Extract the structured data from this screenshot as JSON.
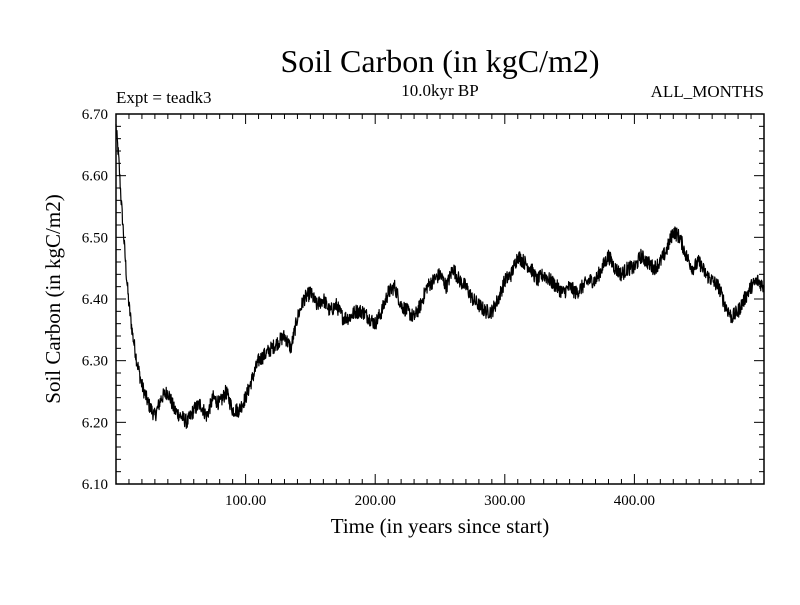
{
  "chart_data": {
    "type": "line",
    "title": "Soil Carbon (in kgC/m2)",
    "subtitle": "10.0kyr BP",
    "expt_label": "Expt = teadk3",
    "season_label": "ALL_MONTHS",
    "xlabel": "Time (in years since start)",
    "ylabel": "Soil Carbon (in kgC/m2)",
    "xlim": [
      0,
      500
    ],
    "ylim": [
      6.1,
      6.7
    ],
    "xticks": [
      100,
      200,
      300,
      400
    ],
    "xtick_labels": [
      "100.00",
      "200.00",
      "300.00",
      "400.00"
    ],
    "yticks": [
      6.1,
      6.2,
      6.3,
      6.4,
      6.5,
      6.6,
      6.7
    ],
    "ytick_labels": [
      "6.10",
      "6.20",
      "6.30",
      "6.40",
      "6.50",
      "6.60",
      "6.70"
    ],
    "grid": false,
    "line_color": "#000000",
    "noise_amplitude": 0.012,
    "series": [
      {
        "name": "Soil Carbon",
        "x": [
          0,
          2,
          4,
          6,
          8,
          10,
          13,
          16,
          20,
          25,
          30,
          35,
          40,
          45,
          50,
          55,
          60,
          65,
          70,
          75,
          80,
          85,
          90,
          95,
          100,
          105,
          110,
          115,
          120,
          125,
          130,
          135,
          140,
          145,
          150,
          155,
          160,
          165,
          170,
          175,
          180,
          185,
          190,
          195,
          200,
          205,
          210,
          215,
          220,
          225,
          230,
          235,
          240,
          245,
          250,
          255,
          260,
          265,
          270,
          275,
          280,
          285,
          290,
          295,
          300,
          305,
          310,
          315,
          320,
          325,
          330,
          335,
          340,
          345,
          350,
          355,
          360,
          365,
          370,
          375,
          380,
          385,
          390,
          395,
          400,
          405,
          410,
          415,
          420,
          425,
          430,
          435,
          440,
          445,
          450,
          455,
          460,
          465,
          470,
          475,
          480,
          485,
          490,
          495,
          500
        ],
        "values": [
          6.68,
          6.63,
          6.56,
          6.5,
          6.44,
          6.39,
          6.34,
          6.3,
          6.26,
          6.23,
          6.21,
          6.24,
          6.25,
          6.22,
          6.21,
          6.2,
          6.22,
          6.23,
          6.21,
          6.24,
          6.23,
          6.25,
          6.22,
          6.22,
          6.24,
          6.27,
          6.3,
          6.31,
          6.32,
          6.33,
          6.34,
          6.32,
          6.37,
          6.4,
          6.41,
          6.39,
          6.4,
          6.38,
          6.39,
          6.37,
          6.37,
          6.38,
          6.38,
          6.37,
          6.36,
          6.38,
          6.41,
          6.42,
          6.39,
          6.38,
          6.37,
          6.39,
          6.42,
          6.43,
          6.44,
          6.42,
          6.45,
          6.43,
          6.42,
          6.4,
          6.39,
          6.38,
          6.38,
          6.4,
          6.43,
          6.44,
          6.47,
          6.46,
          6.45,
          6.43,
          6.44,
          6.43,
          6.42,
          6.41,
          6.42,
          6.41,
          6.42,
          6.43,
          6.43,
          6.45,
          6.47,
          6.45,
          6.44,
          6.45,
          6.45,
          6.47,
          6.46,
          6.45,
          6.46,
          6.48,
          6.51,
          6.5,
          6.47,
          6.45,
          6.46,
          6.44,
          6.43,
          6.42,
          6.39,
          6.37,
          6.38,
          6.4,
          6.42,
          6.43,
          6.42
        ]
      }
    ]
  }
}
